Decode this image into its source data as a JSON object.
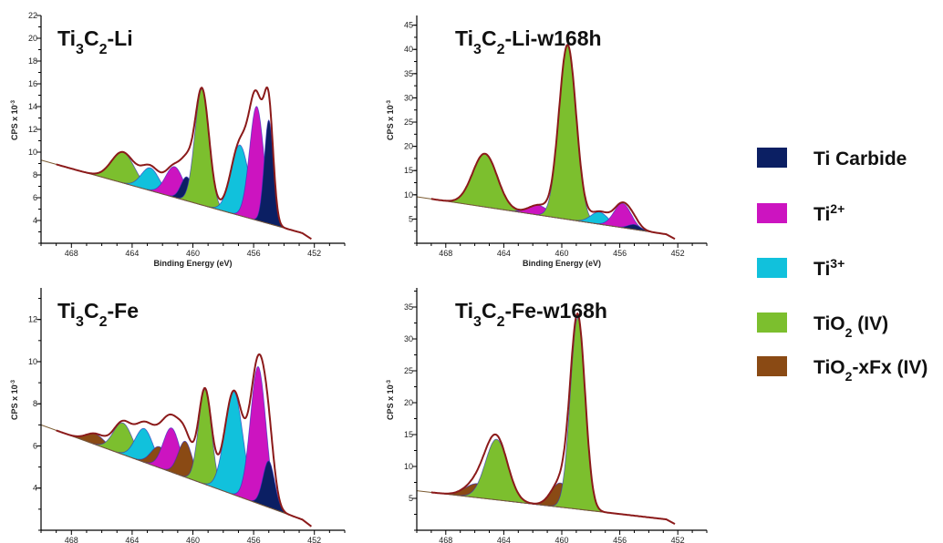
{
  "legend": [
    {
      "key": "carbide",
      "label": "Ti Carbide",
      "color": "#0b1f63"
    },
    {
      "key": "ti2",
      "label": "Ti2+",
      "color": "#cc14c0"
    },
    {
      "key": "ti3",
      "label": "Ti3+",
      "color": "#11c1dc"
    },
    {
      "key": "tio2",
      "label": "TiO2 (IV)",
      "color": "#7cbf2e"
    },
    {
      "key": "tiof",
      "label": "TiO2-xFx (IV)",
      "color": "#8a4a14"
    }
  ],
  "colors": {
    "envelope": "#8b1a1a",
    "component_outline": "#3030c0",
    "background_line": "#7a5a30"
  },
  "chart_data": [
    {
      "id": "Ti3C2-Li",
      "type": "area",
      "title": "Ti3C2-Li",
      "xlabel": "Binding Energy (eV)",
      "ylabel": "CPS x 10-3",
      "xlim": [
        470,
        450
      ],
      "xticks": [
        468,
        464,
        460,
        456,
        452
      ],
      "ylim": [
        2,
        22
      ],
      "yticks": [
        4,
        6,
        8,
        10,
        12,
        14,
        16,
        18,
        20,
        22
      ],
      "background": [
        [
          470,
          9.3
        ],
        [
          452,
          2.6
        ]
      ],
      "peaks": [
        {
          "comp": "tio2",
          "center": 464.6,
          "height": 2.7,
          "fwhm": 1.8
        },
        {
          "comp": "ti3",
          "center": 462.8,
          "height": 2.0,
          "fwhm": 1.4
        },
        {
          "comp": "ti2",
          "center": 461.2,
          "height": 2.7,
          "fwhm": 1.4
        },
        {
          "comp": "carbide",
          "center": 460.4,
          "height": 2.1,
          "fwhm": 0.9
        },
        {
          "comp": "tio2",
          "center": 459.4,
          "height": 10.2,
          "fwhm": 1.1
        },
        {
          "comp": "ti3",
          "center": 456.9,
          "height": 6.2,
          "fwhm": 1.4
        },
        {
          "comp": "ti2",
          "center": 455.8,
          "height": 10.0,
          "fwhm": 1.1
        },
        {
          "comp": "carbide",
          "center": 455.0,
          "height": 9.1,
          "fwhm": 0.7
        }
      ]
    },
    {
      "id": "Ti3C2-Li-w168h",
      "type": "area",
      "title": "Ti3C2-Li-w168h",
      "xlabel": "Binding Energy (eV)",
      "ylabel": "CPS x 10-3",
      "xlim": [
        470,
        450
      ],
      "xticks": [
        468,
        464,
        460,
        456,
        452
      ],
      "ylim": [
        0,
        47
      ],
      "yticks": [
        5,
        10,
        15,
        20,
        25,
        30,
        35,
        40,
        45
      ],
      "background": [
        [
          470,
          9.6
        ],
        [
          452,
          1.5
        ]
      ],
      "peaks": [
        {
          "comp": "tio2",
          "center": 465.3,
          "height": 11.0,
          "fwhm": 2.0
        },
        {
          "comp": "ti2",
          "center": 461.6,
          "height": 2.0,
          "fwhm": 1.6
        },
        {
          "comp": "tio2",
          "center": 459.6,
          "height": 36.0,
          "fwhm": 1.4
        },
        {
          "comp": "ti3",
          "center": 457.4,
          "height": 2.5,
          "fwhm": 1.4
        },
        {
          "comp": "ti2",
          "center": 455.8,
          "height": 5.0,
          "fwhm": 1.4
        },
        {
          "comp": "carbide",
          "center": 455.0,
          "height": 1.0,
          "fwhm": 1.0
        }
      ]
    },
    {
      "id": "Ti3C2-Fe",
      "type": "area",
      "title": "Ti3C2-Fe",
      "xlabel": "Binding Energy (eV)",
      "ylabel": "CPS x 10-3",
      "xlim": [
        470,
        450
      ],
      "xticks": [
        468,
        464,
        460,
        456,
        452
      ],
      "ylim": [
        2,
        13.5
      ],
      "yticks": [
        4,
        6,
        8,
        10,
        12
      ],
      "background": [
        [
          470,
          7.0
        ],
        [
          452,
          2.3
        ]
      ],
      "peaks": [
        {
          "comp": "tiof",
          "center": 466.4,
          "height": 0.5,
          "fwhm": 1.5
        },
        {
          "comp": "tio2",
          "center": 464.6,
          "height": 1.5,
          "fwhm": 1.5
        },
        {
          "comp": "ti3",
          "center": 463.2,
          "height": 1.6,
          "fwhm": 1.4
        },
        {
          "comp": "tiof",
          "center": 462.2,
          "height": 1.0,
          "fwhm": 1.3
        },
        {
          "comp": "ti2",
          "center": 461.4,
          "height": 2.1,
          "fwhm": 1.3
        },
        {
          "comp": "tiof",
          "center": 460.5,
          "height": 1.7,
          "fwhm": 1.1
        },
        {
          "comp": "tio2",
          "center": 459.2,
          "height": 4.5,
          "fwhm": 1.0
        },
        {
          "comp": "ti3",
          "center": 457.3,
          "height": 4.9,
          "fwhm": 1.4
        },
        {
          "comp": "ti2",
          "center": 455.7,
          "height": 6.5,
          "fwhm": 1.2
        },
        {
          "comp": "carbide",
          "center": 455.0,
          "height": 2.2,
          "fwhm": 0.9
        }
      ]
    },
    {
      "id": "Ti3C2-Fe-w168h",
      "type": "area",
      "title": "Ti3C2-Fe-w168h",
      "xlabel": "Binding Energy (eV)",
      "ylabel": "CPS x 10-3",
      "xlim": [
        470,
        450
      ],
      "xticks": [
        468,
        464,
        460,
        456,
        452
      ],
      "ylim": [
        0,
        38
      ],
      "yticks": [
        5,
        10,
        15,
        20,
        25,
        30,
        35
      ],
      "background": [
        [
          470,
          6.2
        ],
        [
          452,
          1.5
        ]
      ],
      "peaks": [
        {
          "comp": "tiof",
          "center": 465.8,
          "height": 2.2,
          "fwhm": 2.0
        },
        {
          "comp": "tio2",
          "center": 464.5,
          "height": 9.5,
          "fwhm": 1.8
        },
        {
          "comp": "tiof",
          "center": 460.1,
          "height": 3.8,
          "fwhm": 1.5
        },
        {
          "comp": "tio2",
          "center": 458.9,
          "height": 30.0,
          "fwhm": 1.2
        }
      ]
    }
  ]
}
